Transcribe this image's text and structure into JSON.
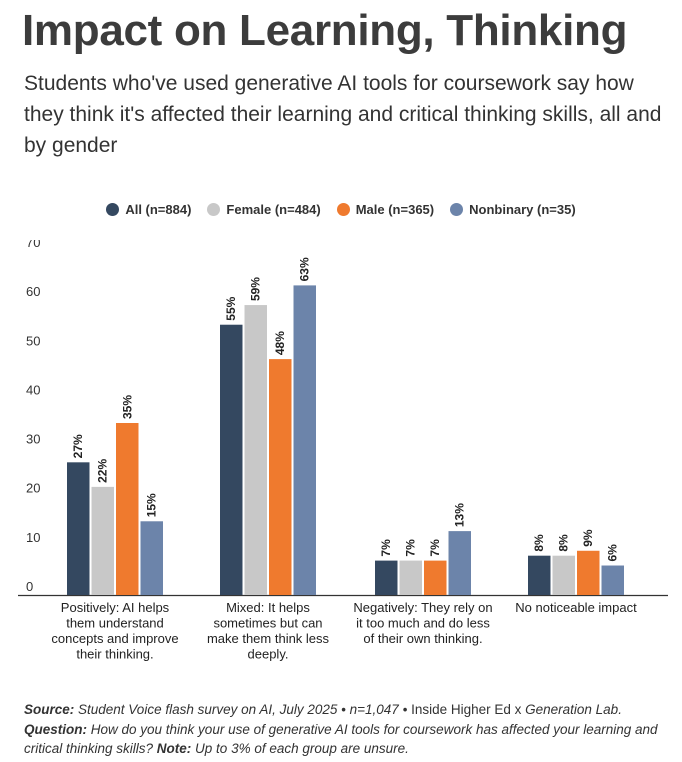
{
  "header": {
    "title": "Impact on Learning, Thinking",
    "subtitle": "Students who've used generative AI tools for coursework say how they think it's affected their learning and critical thinking skills, all and by gender"
  },
  "colors": {
    "all": "#344860",
    "female": "#c8c8c8",
    "male": "#ef7a2e",
    "nonbinary": "#6c84aa"
  },
  "chart_data": {
    "type": "bar",
    "categories": [
      "Positively: AI helps them understand concepts and improve their thinking.",
      "Mixed: It helps sometimes but can make them think less deeply.",
      "Negatively: They rely on it too much and do less of their own thinking.",
      "No noticeable impact"
    ],
    "category_lines": [
      [
        "Positively: AI helps",
        "them understand",
        "concepts and improve",
        "their thinking."
      ],
      [
        "Mixed: It helps",
        "sometimes but can",
        "make them think less",
        "deeply."
      ],
      [
        "Negatively: They rely on",
        "it too much and do less",
        "of their own thinking."
      ],
      [
        "No noticeable impact"
      ]
    ],
    "series": [
      {
        "name": "All (n=884)",
        "color_key": "all",
        "values": [
          27,
          55,
          7,
          8
        ],
        "labels": [
          "27%",
          "55%",
          "7%",
          "8%"
        ]
      },
      {
        "name": "Female (n=484)",
        "color_key": "female",
        "values": [
          22,
          59,
          7,
          8
        ],
        "labels": [
          "22%",
          "59%",
          "7%",
          "8%"
        ]
      },
      {
        "name": "Male (n=365)",
        "color_key": "male",
        "values": [
          35,
          48,
          7,
          9
        ],
        "labels": [
          "35%",
          "48%",
          "7%",
          "9%"
        ]
      },
      {
        "name": "Nonbinary (n=35)",
        "color_key": "nonbinary",
        "values": [
          15,
          63,
          13,
          6
        ],
        "labels": [
          "15%",
          "63%",
          "13%",
          "6%"
        ]
      }
    ],
    "yticks": [
      0,
      10,
      20,
      30,
      40,
      50,
      60,
      70
    ],
    "ylim": [
      0,
      70
    ],
    "grid": false,
    "legend_position": "top-center"
  },
  "footer": {
    "source_label": "Source:",
    "source_text": " Student Voice flash survey on AI, July 2025 • n=1,047 • ",
    "source_upright": "Inside Higher Ed x ",
    "source_italic": "Generation Lab.",
    "question_label": " Question:",
    "question_text": " How do you think your use of generative AI tools for coursework has affected your learning and critical thinking skills?",
    "note_label": " Note:",
    "note_text": " Up to 3% of each group are unsure."
  }
}
